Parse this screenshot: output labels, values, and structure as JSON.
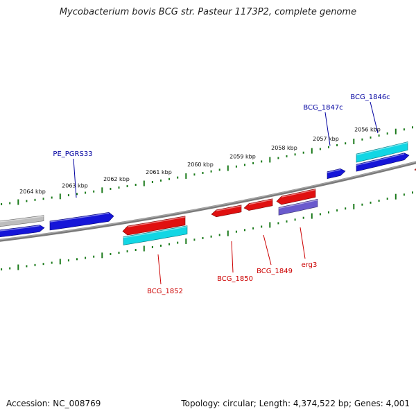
{
  "title": "Mycobacterium bovis BCG str. Pasteur 1173P2, complete genome",
  "footer": {
    "accession": "Accession: NC_008769",
    "summary": "Topology: circular; Length: 4,374,522 bp; Genes: 4,001"
  },
  "colors": {
    "forward_gene": "#1515d8",
    "reverse_gene": "#e01010",
    "cds_cyan": "#12d6e4",
    "pseudo_gray": "#bdbdbd",
    "purple": "#6a5acd",
    "backbone": "#7a7a7a",
    "ticks": "#1a7a1a",
    "forward_label": "#0000a0",
    "reverse_label": "#cc0000"
  },
  "scale_labels": [
    {
      "text": "2064 kbp"
    },
    {
      "text": "2063 kbp"
    },
    {
      "text": "2062 kbp"
    },
    {
      "text": "2061 kbp"
    },
    {
      "text": "2060 kbp"
    },
    {
      "text": "2059 kbp"
    },
    {
      "text": "2058 kbp"
    },
    {
      "text": "2057 kbp"
    },
    {
      "text": "2056 kbp"
    }
  ],
  "gene_labels": {
    "forward": [
      "PE_PGRS33",
      "BCG_1847c",
      "BCG_1846c"
    ],
    "reverse": [
      "BCG_1852",
      "BCG_1850",
      "BCG_1849",
      "erg3"
    ]
  }
}
